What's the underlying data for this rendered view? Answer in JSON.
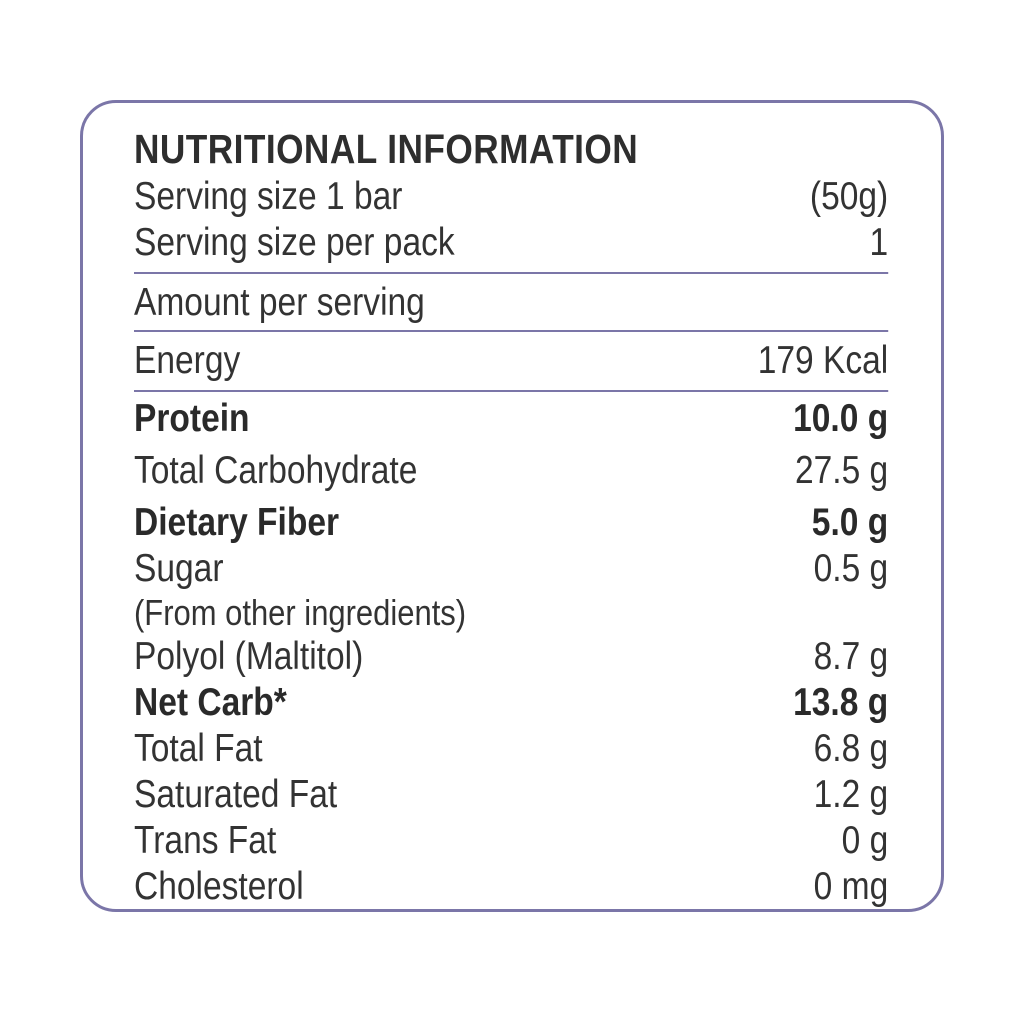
{
  "title": "NUTRITIONAL INFORMATION",
  "serving": [
    {
      "label": "Serving size 1 bar",
      "value": "(50g)"
    },
    {
      "label": "Serving size per pack",
      "value": "1"
    }
  ],
  "amount_header": "Amount per serving",
  "energy": {
    "label": "Energy",
    "value": "179 Kcal"
  },
  "nutrients": [
    {
      "label": "Protein",
      "value": "10.0 g",
      "bold": true
    },
    {
      "label": "Total Carbohydrate",
      "value": "27.5 g",
      "bold": false
    },
    {
      "label": "Dietary Fiber",
      "value": "5.0 g",
      "bold": true
    },
    {
      "label": "Sugar",
      "value": "0.5 g",
      "bold": false,
      "note": "(From other ingredients)"
    },
    {
      "label": "Polyol (Maltitol)",
      "value": "8.7 g",
      "bold": false
    },
    {
      "label": "Net Carb*",
      "value": "13.8 g",
      "bold": true
    },
    {
      "label": "Total Fat",
      "value": "6.8 g",
      "bold": false
    },
    {
      "label": "Saturated Fat",
      "value": "1.2 g",
      "bold": false
    },
    {
      "label": "Trans Fat",
      "value": "0 g",
      "bold": false
    },
    {
      "label": "Cholesterol",
      "value": "0 mg",
      "bold": false
    }
  ],
  "colors": {
    "border": "#7b76a8",
    "text": "#333333"
  }
}
